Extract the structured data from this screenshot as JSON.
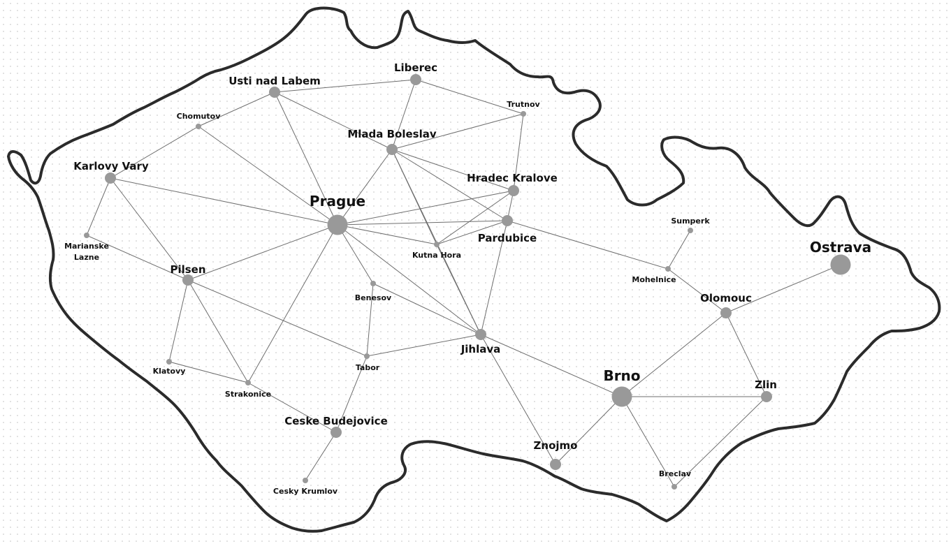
{
  "colors": {
    "node": "#999999",
    "edge": "#6e6e6e",
    "border": "#2b2b2b",
    "label": "#111111"
  },
  "cities": [
    {
      "id": "prague",
      "name": "Prague",
      "size": "xlarge"
    },
    {
      "id": "brno",
      "name": "Brno",
      "size": "xlarge"
    },
    {
      "id": "ostrava",
      "name": "Ostrava",
      "size": "xlarge"
    },
    {
      "id": "usti",
      "name": "Usti nad Labem",
      "size": "medium"
    },
    {
      "id": "liberec",
      "name": "Liberec",
      "size": "medium"
    },
    {
      "id": "mlada",
      "name": "Mlada Boleslav",
      "size": "medium"
    },
    {
      "id": "karlovy",
      "name": "Karlovy Vary",
      "size": "medium"
    },
    {
      "id": "hradec",
      "name": "Hradec Kralove",
      "size": "medium"
    },
    {
      "id": "pardubice",
      "name": "Pardubice",
      "size": "medium"
    },
    {
      "id": "pilsen",
      "name": "Pilsen",
      "size": "medium"
    },
    {
      "id": "jihlava",
      "name": "Jihlava",
      "size": "medium"
    },
    {
      "id": "olomouc",
      "name": "Olomouc",
      "size": "medium"
    },
    {
      "id": "zlin",
      "name": "Zlin",
      "size": "medium"
    },
    {
      "id": "ceske",
      "name": "Ceske Budejovice",
      "size": "medium"
    },
    {
      "id": "znojmo",
      "name": "Znojmo",
      "size": "medium"
    },
    {
      "id": "chomutov",
      "name": "Chomutov",
      "size": "small"
    },
    {
      "id": "trutnov",
      "name": "Trutnov",
      "size": "small"
    },
    {
      "id": "marianske",
      "name": "Marianske\nLazne",
      "size": "small"
    },
    {
      "id": "kutna",
      "name": "Kutna Hora",
      "size": "small"
    },
    {
      "id": "benesov",
      "name": "Benesov",
      "size": "small"
    },
    {
      "id": "sumperk",
      "name": "Sumperk",
      "size": "small"
    },
    {
      "id": "mohelnice",
      "name": "Mohelnice",
      "size": "small"
    },
    {
      "id": "klatovy",
      "name": "Klatovy",
      "size": "small"
    },
    {
      "id": "tabor",
      "name": "Tabor",
      "size": "small"
    },
    {
      "id": "strakonice",
      "name": "Strakonice",
      "size": "small"
    },
    {
      "id": "cesky",
      "name": "Cesky Krumlov",
      "size": "small"
    },
    {
      "id": "breclav",
      "name": "Breclav",
      "size": "small"
    }
  ],
  "connections": [
    [
      "usti",
      "liberec"
    ],
    [
      "usti",
      "chomutov"
    ],
    [
      "usti",
      "prague"
    ],
    [
      "usti",
      "mlada"
    ],
    [
      "liberec",
      "mlada"
    ],
    [
      "liberec",
      "trutnov"
    ],
    [
      "chomutov",
      "karlovy"
    ],
    [
      "chomutov",
      "prague"
    ],
    [
      "mlada",
      "trutnov"
    ],
    [
      "mlada",
      "hradec"
    ],
    [
      "mlada",
      "prague"
    ],
    [
      "mlada",
      "pardubice"
    ],
    [
      "mlada",
      "kutna"
    ],
    [
      "mlada",
      "jihlava"
    ],
    [
      "trutnov",
      "hradec"
    ],
    [
      "karlovy",
      "prague"
    ],
    [
      "karlovy",
      "marianske"
    ],
    [
      "karlovy",
      "pilsen"
    ],
    [
      "marianske",
      "pilsen"
    ],
    [
      "prague",
      "hradec"
    ],
    [
      "prague",
      "pardubice"
    ],
    [
      "prague",
      "kutna"
    ],
    [
      "prague",
      "benesov"
    ],
    [
      "prague",
      "jihlava"
    ],
    [
      "prague",
      "pilsen"
    ],
    [
      "prague",
      "strakonice"
    ],
    [
      "hradec",
      "pardubice"
    ],
    [
      "hradec",
      "kutna"
    ],
    [
      "pardubice",
      "kutna"
    ],
    [
      "pardubice",
      "jihlava"
    ],
    [
      "pardubice",
      "mohelnice"
    ],
    [
      "kutna",
      "jihlava"
    ],
    [
      "benesov",
      "tabor"
    ],
    [
      "benesov",
      "jihlava"
    ],
    [
      "pilsen",
      "klatovy"
    ],
    [
      "pilsen",
      "strakonice"
    ],
    [
      "pilsen",
      "tabor"
    ],
    [
      "klatovy",
      "strakonice"
    ],
    [
      "strakonice",
      "ceske"
    ],
    [
      "tabor",
      "ceske"
    ],
    [
      "tabor",
      "jihlava"
    ],
    [
      "ceske",
      "cesky"
    ],
    [
      "jihlava",
      "brno"
    ],
    [
      "jihlava",
      "znojmo"
    ],
    [
      "brno",
      "znojmo"
    ],
    [
      "brno",
      "olomouc"
    ],
    [
      "brno",
      "zlin"
    ],
    [
      "brno",
      "breclav"
    ],
    [
      "olomouc",
      "mohelnice"
    ],
    [
      "olomouc",
      "ostrava"
    ],
    [
      "olomouc",
      "zlin"
    ],
    [
      "mohelnice",
      "sumperk"
    ],
    [
      "zlin",
      "breclav"
    ]
  ]
}
